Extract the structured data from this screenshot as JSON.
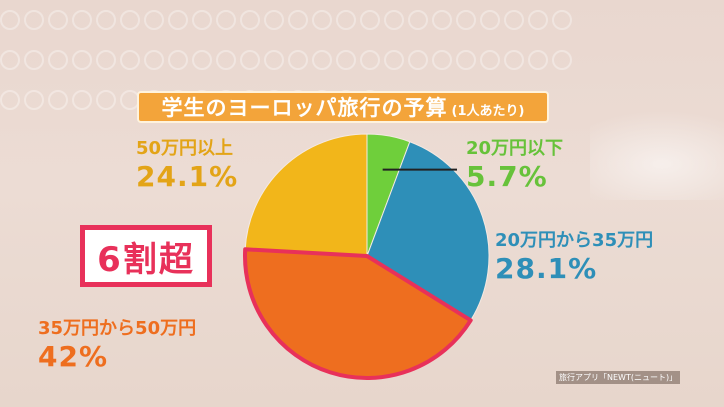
{
  "chart_data": {
    "type": "pie",
    "title": "学生のヨーロッパ旅行の予算",
    "subtitle": "(1人あたり)",
    "slices": [
      {
        "label": "20万円以下",
        "value": 5.7,
        "value_text": "5.7%",
        "color": "#6fcf3b"
      },
      {
        "label": "20万円から35万円",
        "value": 28.1,
        "value_text": "28.1%",
        "color": "#2e8fb8"
      },
      {
        "label": "35万円から50万円",
        "value": 42,
        "value_text": "42%",
        "color": "#ee6e1f"
      },
      {
        "label": "50万円以上",
        "value": 24.1,
        "value_text": "24.1%",
        "color": "#f2b61a"
      }
    ],
    "highlight_slice": "35万円から50万円",
    "highlight_color": "#e8315a",
    "start_angle": "12 o'clock, clockwise"
  },
  "callout": {
    "text": "6割超"
  },
  "source": {
    "text": "旅行アプリ「NEWT(ニュート)」"
  },
  "colors": {
    "label_green": "#67c23a",
    "label_blue": "#2e8fb8",
    "label_orange": "#ee6e1f",
    "label_gold": "#e3a417"
  }
}
